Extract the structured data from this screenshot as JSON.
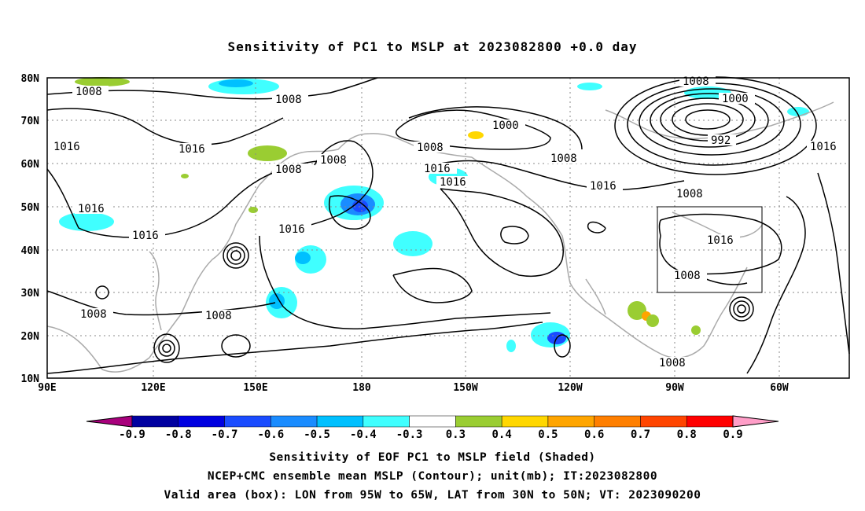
{
  "title": "Sensitivity of PC1 to MSLP at 2023082800 +0.0 day",
  "lat_labels": [
    "80N",
    "70N",
    "60N",
    "50N",
    "40N",
    "30N",
    "20N",
    "10N"
  ],
  "lon_labels": [
    "90E",
    "120E",
    "150E",
    "180",
    "150W",
    "120W",
    "90W",
    "60W"
  ],
  "contour_labels": [
    {
      "text": "1008"
    },
    {
      "text": "1008"
    },
    {
      "text": "1016"
    },
    {
      "text": "1016"
    },
    {
      "text": "1008"
    },
    {
      "text": "1008"
    },
    {
      "text": "1000"
    },
    {
      "text": "1008"
    },
    {
      "text": "1016"
    },
    {
      "text": "1016"
    },
    {
      "text": "1008"
    },
    {
      "text": "1016"
    },
    {
      "text": "1008"
    },
    {
      "text": "1000"
    },
    {
      "text": "992"
    },
    {
      "text": "1016"
    },
    {
      "text": "1008"
    },
    {
      "text": "1016"
    },
    {
      "text": "1016"
    },
    {
      "text": "1016"
    },
    {
      "text": "1008"
    },
    {
      "text": "1008"
    },
    {
      "text": "1016"
    },
    {
      "text": "1008"
    },
    {
      "text": "1008"
    }
  ],
  "colorbar": {
    "colors": [
      "#a8007c",
      "#0000a0",
      "#0000e0",
      "#1a4cff",
      "#1a8cff",
      "#00c0ff",
      "#40ffff",
      "#ffffff",
      "#9acd32",
      "#ffd700",
      "#ffa500",
      "#ff7f00",
      "#ff4500",
      "#ff0000",
      "#ff9ec8"
    ],
    "labels": [
      "-0.9",
      "-0.8",
      "-0.7",
      "-0.6",
      "-0.5",
      "-0.4",
      "-0.3",
      "0.3",
      "0.4",
      "0.5",
      "0.6",
      "0.7",
      "0.8",
      "0.9"
    ]
  },
  "caption": {
    "line1": "Sensitivity of EOF PC1 to MSLP field (Shaded)",
    "line2": "NCEP+CMC ensemble mean MSLP (Contour); unit(mb); IT:2023082800",
    "line3": "Valid area (box): LON from 95W to 65W, LAT from 30N to 50N; VT: 2023090200"
  }
}
